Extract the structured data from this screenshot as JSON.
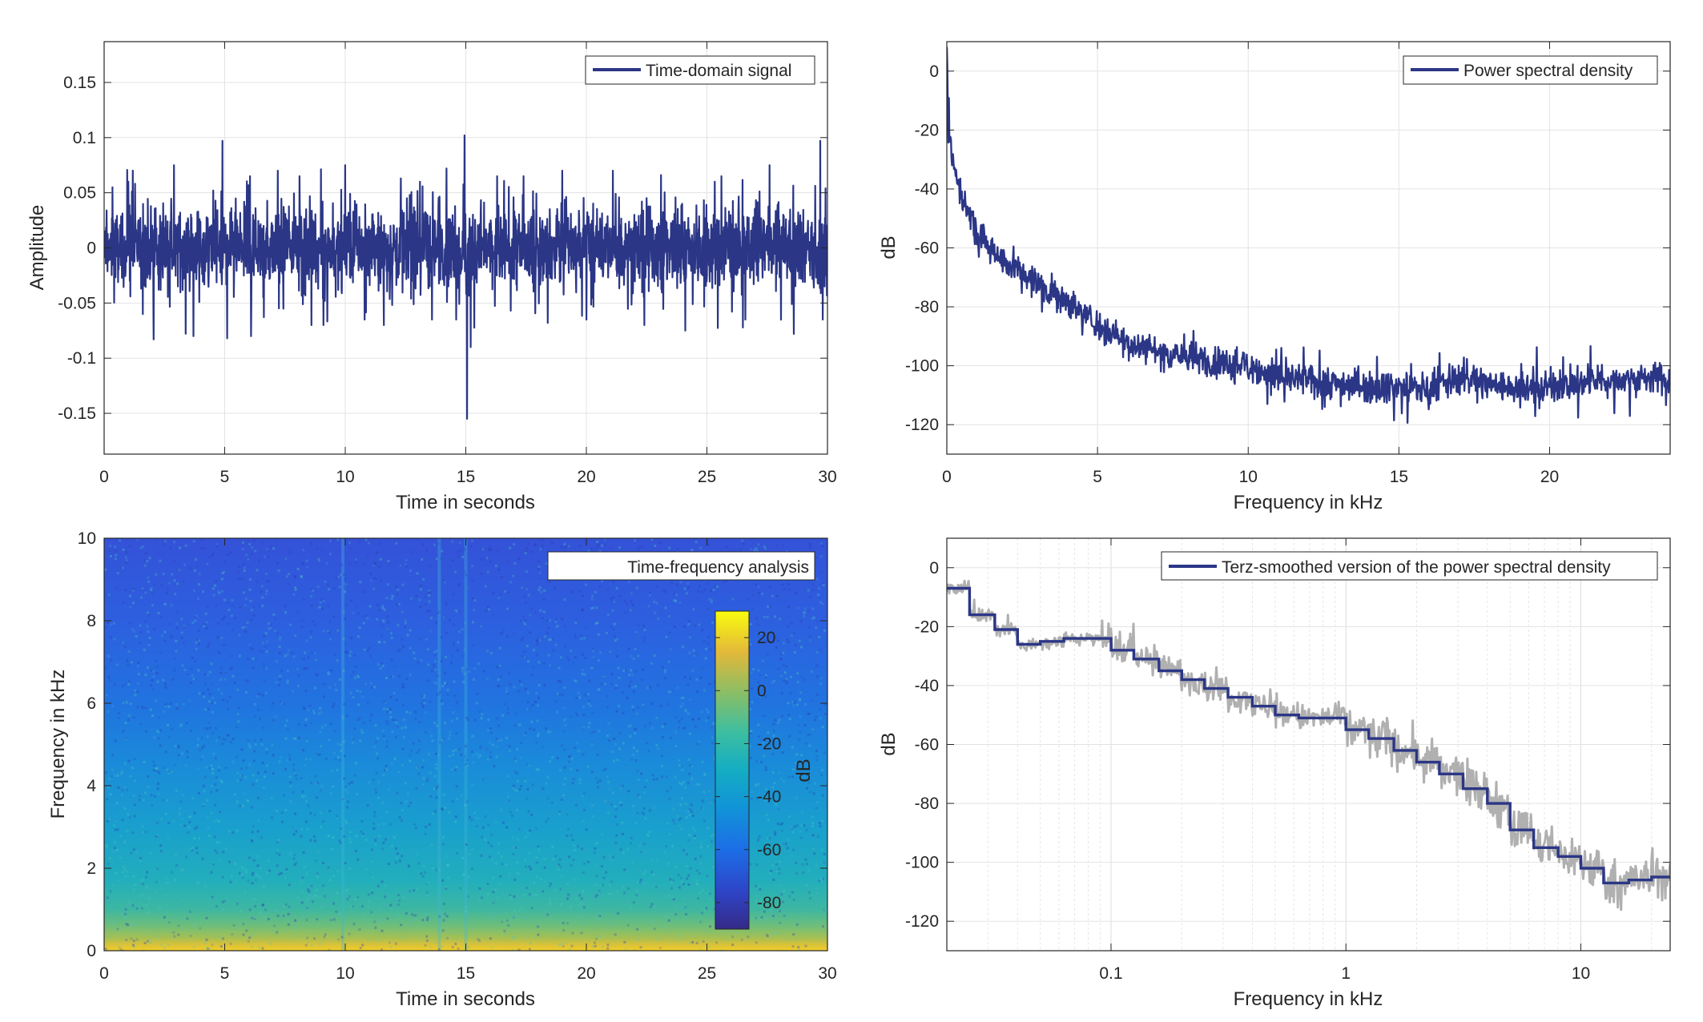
{
  "colors": {
    "series": "#2b3686",
    "raw_psd": "#b0b0b0",
    "grid": "#e3e3e3",
    "axis": "#262626"
  },
  "chart_data": [
    {
      "id": "time-domain",
      "type": "line",
      "legend": "Time-domain signal",
      "legend_position": "top-right",
      "xlabel": "Time in seconds",
      "ylabel": "Amplitude",
      "xlim": [
        0,
        30
      ],
      "ylim": [
        -0.187,
        0.187
      ],
      "xticks": [
        0,
        5,
        10,
        15,
        20,
        25,
        30
      ],
      "xtick_labels": [
        "0",
        "5",
        "10",
        "15",
        "20",
        "25",
        "30"
      ],
      "yticks": [
        -0.15,
        -0.1,
        -0.05,
        0,
        0.05,
        0.1,
        0.15
      ],
      "ytick_labels": [
        "-0.15",
        "-0.1",
        "-0.05",
        "0",
        "0.05",
        "0.1",
        "0.15"
      ],
      "grid": true,
      "noise_band": 0.028,
      "peaks": [
        {
          "x": 0.35,
          "y": 0.055
        },
        {
          "x": 1.0,
          "y": 0.06
        },
        {
          "x": 1.6,
          "y": -0.06
        },
        {
          "x": 2.05,
          "y": -0.083
        },
        {
          "x": 2.9,
          "y": 0.075
        },
        {
          "x": 3.7,
          "y": -0.08
        },
        {
          "x": 4.9,
          "y": 0.097
        },
        {
          "x": 5.1,
          "y": -0.082
        },
        {
          "x": 6.05,
          "y": 0.065
        },
        {
          "x": 6.1,
          "y": -0.08
        },
        {
          "x": 7.2,
          "y": 0.07
        },
        {
          "x": 8.1,
          "y": 0.065
        },
        {
          "x": 8.6,
          "y": -0.07
        },
        {
          "x": 9.1,
          "y": -0.07
        },
        {
          "x": 10.0,
          "y": 0.075
        },
        {
          "x": 10.8,
          "y": -0.065
        },
        {
          "x": 11.6,
          "y": -0.07
        },
        {
          "x": 12.3,
          "y": 0.063
        },
        {
          "x": 13.1,
          "y": 0.06
        },
        {
          "x": 13.6,
          "y": -0.065
        },
        {
          "x": 14.2,
          "y": 0.072
        },
        {
          "x": 14.6,
          "y": -0.065
        },
        {
          "x": 14.95,
          "y": 0.102
        },
        {
          "x": 15.05,
          "y": -0.155
        },
        {
          "x": 15.2,
          "y": -0.09
        },
        {
          "x": 16.3,
          "y": 0.065
        },
        {
          "x": 17.4,
          "y": 0.065
        },
        {
          "x": 18.4,
          "y": -0.068
        },
        {
          "x": 19.0,
          "y": 0.07
        },
        {
          "x": 20.0,
          "y": -0.065
        },
        {
          "x": 21.1,
          "y": 0.07
        },
        {
          "x": 22.4,
          "y": -0.07
        },
        {
          "x": 23.1,
          "y": 0.066
        },
        {
          "x": 24.1,
          "y": -0.075
        },
        {
          "x": 25.6,
          "y": 0.065
        },
        {
          "x": 26.6,
          "y": -0.065
        },
        {
          "x": 27.6,
          "y": 0.075
        },
        {
          "x": 28.6,
          "y": -0.078
        },
        {
          "x": 29.7,
          "y": 0.097
        },
        {
          "x": 29.8,
          "y": -0.065
        }
      ]
    },
    {
      "id": "psd",
      "type": "line",
      "legend": "Power spectral density",
      "legend_position": "top-right",
      "xlabel": "Frequency in kHz",
      "ylabel": "dB",
      "xlim": [
        0,
        24
      ],
      "ylim": [
        -130,
        10
      ],
      "xticks": [
        0,
        5,
        10,
        15,
        20
      ],
      "xtick_labels": [
        "0",
        "5",
        "10",
        "15",
        "20"
      ],
      "yticks": [
        0,
        -20,
        -40,
        -60,
        -80,
        -100,
        -120
      ],
      "ytick_labels": [
        "0",
        "-20",
        "-40",
        "-60",
        "-80",
        "-100",
        "-120"
      ],
      "grid": true,
      "x": [
        0,
        0.05,
        0.2,
        0.5,
        1,
        2,
        3,
        4,
        5,
        6,
        7,
        8,
        9,
        10,
        11,
        12,
        13,
        14,
        15,
        16,
        17,
        18,
        19,
        20,
        21,
        22,
        23,
        24
      ],
      "y": [
        5,
        -20,
        -32,
        -42,
        -55,
        -65,
        -72,
        -78,
        -86,
        -92,
        -95,
        -97,
        -99,
        -100,
        -104,
        -105,
        -106,
        -107,
        -107,
        -108,
        -104,
        -106,
        -108,
        -107,
        -106,
        -105,
        -104,
        -104
      ]
    },
    {
      "id": "spectrogram",
      "type": "heatmap",
      "legend": "Time-frequency analysis",
      "legend_position": "top-right",
      "xlabel": "Time in seconds",
      "ylabel": "Frequency in kHz",
      "xlim": [
        0,
        30
      ],
      "ylim": [
        0,
        10
      ],
      "xticks": [
        0,
        5,
        10,
        15,
        20,
        25,
        30
      ],
      "xtick_labels": [
        "0",
        "5",
        "10",
        "15",
        "20",
        "25",
        "30"
      ],
      "yticks": [
        0,
        2,
        4,
        6,
        8,
        10
      ],
      "ytick_labels": [
        "0",
        "2",
        "4",
        "6",
        "8",
        "10"
      ],
      "colorbar": {
        "label": "dB",
        "clim": [
          -90,
          30
        ],
        "ticks": [
          20,
          0,
          -20,
          -40,
          -60,
          -80
        ],
        "tick_labels": [
          "20",
          "0",
          "-20",
          "-40",
          "-60",
          "-80"
        ]
      },
      "level_profile": {
        "freq_khz": [
          0,
          0.2,
          0.5,
          1,
          1.5,
          2,
          3,
          4,
          5,
          6,
          7,
          8,
          9,
          10
        ],
        "db": [
          5,
          -5,
          -15,
          -25,
          -30,
          -35,
          -40,
          -45,
          -52,
          -57,
          -62,
          -66,
          -68,
          -70
        ]
      },
      "transients_s": [
        9.9,
        13.9,
        15.0
      ]
    },
    {
      "id": "terz",
      "type": "line",
      "legend": "Terz-smoothed version of the power spectral density",
      "legend_position": "top-right",
      "xlabel": "Frequency in kHz",
      "ylabel": "dB",
      "xscale": "log",
      "xlim": [
        0.02,
        24
      ],
      "ylim": [
        -130,
        10
      ],
      "xticks": [
        0.1,
        1,
        10
      ],
      "xtick_labels": [
        "0.1",
        "1",
        "10"
      ],
      "yticks": [
        0,
        -20,
        -40,
        -60,
        -80,
        -100,
        -120
      ],
      "ytick_labels": [
        "0",
        "-20",
        "-40",
        "-60",
        "-80",
        "-100",
        "-120"
      ],
      "grid": true,
      "bands": [
        {
          "x0": 0.02,
          "x1": 0.025,
          "y": -7
        },
        {
          "x0": 0.025,
          "x1": 0.032,
          "y": -16
        },
        {
          "x0": 0.032,
          "x1": 0.04,
          "y": -21
        },
        {
          "x0": 0.04,
          "x1": 0.05,
          "y": -26
        },
        {
          "x0": 0.05,
          "x1": 0.063,
          "y": -25
        },
        {
          "x0": 0.063,
          "x1": 0.08,
          "y": -24
        },
        {
          "x0": 0.08,
          "x1": 0.1,
          "y": -24
        },
        {
          "x0": 0.1,
          "x1": 0.125,
          "y": -28
        },
        {
          "x0": 0.125,
          "x1": 0.16,
          "y": -31
        },
        {
          "x0": 0.16,
          "x1": 0.2,
          "y": -35
        },
        {
          "x0": 0.2,
          "x1": 0.25,
          "y": -38
        },
        {
          "x0": 0.25,
          "x1": 0.315,
          "y": -41
        },
        {
          "x0": 0.315,
          "x1": 0.4,
          "y": -44
        },
        {
          "x0": 0.4,
          "x1": 0.5,
          "y": -47
        },
        {
          "x0": 0.5,
          "x1": 0.63,
          "y": -50
        },
        {
          "x0": 0.63,
          "x1": 0.8,
          "y": -51
        },
        {
          "x0": 0.8,
          "x1": 1.0,
          "y": -51
        },
        {
          "x0": 1.0,
          "x1": 1.25,
          "y": -55
        },
        {
          "x0": 1.25,
          "x1": 1.6,
          "y": -58
        },
        {
          "x0": 1.6,
          "x1": 2.0,
          "y": -62
        },
        {
          "x0": 2.0,
          "x1": 2.5,
          "y": -66
        },
        {
          "x0": 2.5,
          "x1": 3.15,
          "y": -70
        },
        {
          "x0": 3.15,
          "x1": 4.0,
          "y": -75
        },
        {
          "x0": 4.0,
          "x1": 5.0,
          "y": -80
        },
        {
          "x0": 5.0,
          "x1": 6.3,
          "y": -89
        },
        {
          "x0": 6.3,
          "x1": 8.0,
          "y": -95
        },
        {
          "x0": 8.0,
          "x1": 10.0,
          "y": -98
        },
        {
          "x0": 10.0,
          "x1": 12.5,
          "y": -102
        },
        {
          "x0": 12.5,
          "x1": 16.0,
          "y": -107
        },
        {
          "x0": 16.0,
          "x1": 20.0,
          "y": -106
        },
        {
          "x0": 20.0,
          "x1": 24.0,
          "y": -105
        }
      ]
    }
  ]
}
